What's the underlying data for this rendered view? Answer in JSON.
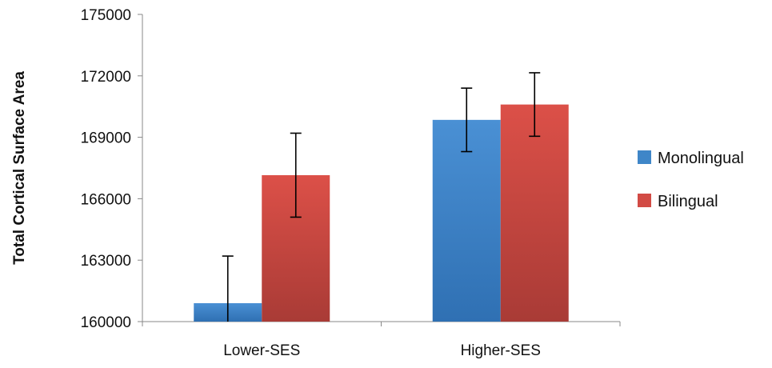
{
  "chart_data": {
    "type": "bar",
    "title": "",
    "xlabel": "",
    "ylabel": "Total Cortical Surface Area",
    "categories": [
      "Lower-SES",
      "Higher-SES"
    ],
    "ylim": [
      160000,
      175000
    ],
    "yticks": [
      160000,
      163000,
      166000,
      169000,
      172000,
      175000
    ],
    "grid": false,
    "legend_position": "right",
    "series": [
      {
        "name": "Monolingual",
        "color": "#3f86c8",
        "values": [
          160900,
          169850
        ],
        "error": [
          2300,
          1550
        ]
      },
      {
        "name": "Bilingual",
        "color": "#d24b45",
        "values": [
          167150,
          170600
        ],
        "error": [
          2050,
          1550
        ]
      }
    ]
  }
}
